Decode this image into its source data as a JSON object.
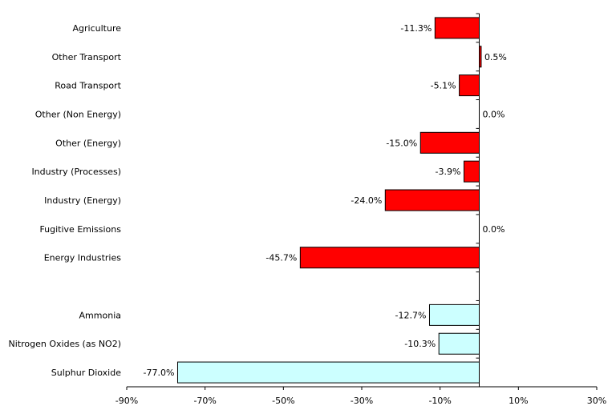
{
  "chart_data": {
    "type": "bar",
    "orientation": "horizontal",
    "categories": [
      "Agriculture",
      "Other Transport",
      "Road Transport",
      "Other (Non Energy)",
      "Other (Energy)",
      "Industry (Processes)",
      "Industry (Energy)",
      "Fugitive Emissions",
      "Energy Industries",
      "",
      "Ammonia",
      "Nitrogen Oxides (as NO2)",
      "Sulphur Dioxide"
    ],
    "values": [
      -11.3,
      0.5,
      -5.1,
      0.0,
      -15.0,
      -3.9,
      -24.0,
      0.0,
      -45.7,
      null,
      -12.7,
      -10.3,
      -77.0
    ],
    "data_labels": [
      "-11.3%",
      "0.5%",
      "-5.1%",
      "0.0%",
      "-15.0%",
      "-3.9%",
      "-24.0%",
      "0.0%",
      "-45.7%",
      "",
      "-12.7%",
      "-10.3%",
      "-77.0%"
    ],
    "bar_colors": [
      "#ff0000",
      "#ff0000",
      "#ff0000",
      "#ff0000",
      "#ff0000",
      "#ff0000",
      "#ff0000",
      "#ff0000",
      "#ff0000",
      "",
      "#ccffff",
      "#ccffff",
      "#ccffff"
    ],
    "xlim": [
      -90,
      30
    ],
    "xticks": [
      -90,
      -70,
      -50,
      -30,
      -10,
      10,
      30
    ],
    "xtick_labels": [
      "-90%",
      "-70%",
      "-50%",
      "-30%",
      "-10%",
      "10%",
      "30%"
    ],
    "title": "",
    "xlabel": "",
    "ylabel": "",
    "grid": false,
    "legend": "none"
  }
}
